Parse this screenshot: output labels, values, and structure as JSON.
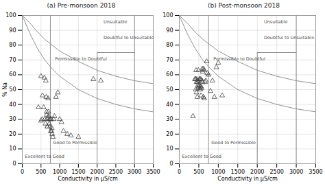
{
  "chart_data": [
    {
      "type": "scatter",
      "title": "(a) Pre-monsoon 2018",
      "xlabel": "Conductivity in μS/cm",
      "ylabel": "% Na",
      "xlim": [
        0,
        3500
      ],
      "ylim": [
        0,
        100
      ],
      "xticks": [
        0,
        500,
        1000,
        1500,
        2000,
        2500,
        3000,
        3500
      ],
      "yticks": [
        0,
        10,
        20,
        30,
        40,
        50,
        60,
        70,
        80,
        90,
        100
      ],
      "grid": true,
      "annotations": [
        "Unsuitable",
        "Doubtful to Unsuitable",
        "Permissible to Doubtful",
        "Excellent to Good",
        "Good to Permissible"
      ],
      "series": [
        {
          "type": "line",
          "color": "#909090",
          "x": [
            0,
            200,
            400,
            600,
            800,
            1000,
            1500,
            2000,
            2500,
            3000,
            3500
          ],
          "values": [
            100,
            88,
            78,
            70,
            64,
            59,
            50,
            44,
            40,
            37,
            35
          ]
        },
        {
          "type": "line",
          "color": "#909090",
          "x": [
            0,
            200,
            400,
            600,
            800,
            1000,
            1500,
            2000,
            2500,
            3000,
            3500
          ],
          "values": [
            100,
            95,
            89,
            84,
            80,
            76,
            69,
            63,
            59,
            56,
            54
          ]
        },
        {
          "type": "line",
          "color": "#909090",
          "x": [
            750,
            750
          ],
          "values": [
            0,
            100
          ]
        },
        {
          "type": "line",
          "color": "#909090",
          "x": [
            2000,
            2000
          ],
          "values": [
            0,
            75
          ]
        },
        {
          "type": "line",
          "color": "#909090",
          "x": [
            3000,
            3000
          ],
          "values": [
            0,
            100
          ]
        },
        {
          "type": "line",
          "color": "#909090",
          "x": [
            2000,
            3000
          ],
          "values": [
            75,
            75
          ]
        },
        {
          "type": "scatter",
          "marker": "triangle",
          "color": "#404040",
          "x": [
            430,
            500,
            530,
            590,
            630,
            640,
            650,
            660,
            670,
            680,
            690,
            700,
            710,
            720,
            730,
            740,
            750,
            760,
            770,
            780,
            790,
            800,
            820,
            840,
            860,
            900,
            950,
            1000,
            1050,
            1100,
            1200,
            1300,
            1500,
            1900,
            2100,
            500,
            540,
            570,
            600,
            620,
            650,
            670
          ],
          "values": [
            38,
            29,
            30,
            58,
            56,
            45,
            35,
            30,
            25,
            31,
            44,
            35,
            32,
            27,
            30,
            25,
            30,
            22,
            30,
            22,
            24,
            20,
            18,
            30,
            32,
            45,
            48,
            30,
            28,
            22,
            20,
            19,
            18,
            57,
            56,
            59,
            46,
            38,
            30,
            27,
            33,
            25
          ]
        }
      ]
    },
    {
      "type": "scatter",
      "title": "(b) Post-monsoon 2018",
      "xlabel": "Conductivity in μS/cm",
      "xlim": [
        0,
        3500
      ],
      "ylim": [
        0,
        100
      ],
      "xticks": [
        0,
        500,
        1000,
        1500,
        2000,
        2500,
        3000,
        3500
      ],
      "yticks": [
        0,
        10,
        20,
        30,
        40,
        50,
        60,
        70,
        80,
        90,
        100
      ],
      "grid": true,
      "annotations": [
        "Unsuitable",
        "Doubtful to Unsuitable",
        "Permissible to Doubtful",
        "Excellent to Good",
        "Good to Permissible"
      ],
      "series": [
        {
          "type": "line",
          "color": "#909090",
          "x": [
            0,
            200,
            400,
            600,
            800,
            1000,
            1500,
            2000,
            2500,
            3000,
            3500
          ],
          "values": [
            100,
            88,
            78,
            70,
            64,
            59,
            50,
            44,
            40,
            37,
            35
          ]
        },
        {
          "type": "line",
          "color": "#909090",
          "x": [
            0,
            200,
            400,
            600,
            800,
            1000,
            1500,
            2000,
            2500,
            3000,
            3500
          ],
          "values": [
            100,
            95,
            89,
            84,
            80,
            76,
            69,
            63,
            59,
            56,
            54
          ]
        },
        {
          "type": "line",
          "color": "#909090",
          "x": [
            750,
            750
          ],
          "values": [
            0,
            100
          ]
        },
        {
          "type": "line",
          "color": "#909090",
          "x": [
            2000,
            2000
          ],
          "values": [
            0,
            75
          ]
        },
        {
          "type": "line",
          "color": "#909090",
          "x": [
            3000,
            3000
          ],
          "values": [
            0,
            100
          ]
        },
        {
          "type": "line",
          "color": "#909090",
          "x": [
            2000,
            3000
          ],
          "values": [
            75,
            75
          ]
        },
        {
          "type": "scatter",
          "marker": "triangle",
          "color": "#404040",
          "x": [
            350,
            400,
            420,
            430,
            440,
            450,
            460,
            470,
            480,
            490,
            500,
            510,
            520,
            530,
            540,
            550,
            560,
            570,
            580,
            590,
            600,
            620,
            640,
            660,
            680,
            700,
            720,
            750,
            800,
            850,
            900,
            950,
            1000,
            1100,
            420,
            440,
            460,
            480,
            500,
            520,
            540,
            560,
            580,
            600,
            620,
            640
          ],
          "values": [
            32,
            57,
            57,
            63,
            55,
            57,
            45,
            55,
            51,
            63,
            56,
            53,
            57,
            50,
            52,
            57,
            46,
            51,
            56,
            64,
            62,
            64,
            63,
            55,
            56,
            69,
            61,
            60,
            49,
            56,
            45,
            65,
            68,
            46,
            50,
            48,
            56,
            53,
            52,
            57,
            50,
            52,
            56,
            55,
            45,
            44
          ]
        }
      ]
    }
  ]
}
